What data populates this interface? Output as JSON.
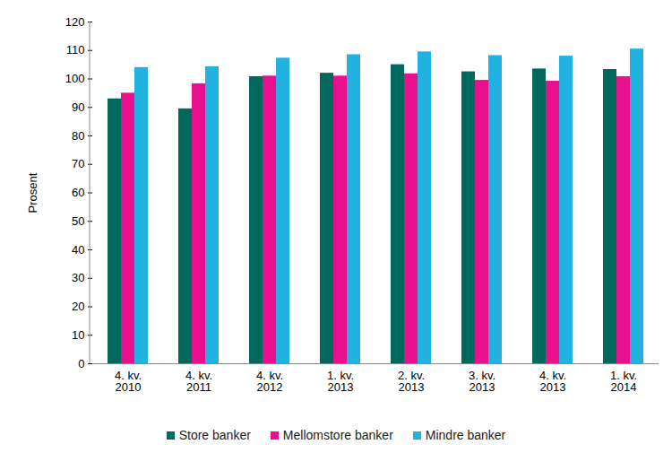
{
  "chart_data": {
    "type": "bar",
    "categories": [
      "4. kv.\n2010",
      "4. kv.\n2011",
      "4. kv.\n2012",
      "1. kv.\n2013",
      "2. kv.\n2013",
      "3. kv.\n2013",
      "4. kv.\n2013",
      "1. kv.\n2014"
    ],
    "series": [
      {
        "name": "Store banker",
        "color": "#00685c",
        "values": [
          93,
          89.5,
          100.8,
          102,
          105,
          102.5,
          103.5,
          103.3
        ]
      },
      {
        "name": "Mellomstore banker",
        "color": "#e8108f",
        "values": [
          95,
          98.3,
          101,
          101,
          101.8,
          99.5,
          99.2,
          100.8
        ]
      },
      {
        "name": "Mindre banker",
        "color": "#22b2e2",
        "values": [
          104,
          104.3,
          107.3,
          108.5,
          109.5,
          108.2,
          108,
          110.5
        ]
      }
    ],
    "y_label": "Prosent",
    "ylim": [
      0,
      120
    ],
    "yticks": [
      0,
      10,
      20,
      30,
      40,
      50,
      60,
      70,
      80,
      90,
      100,
      110,
      120
    ],
    "grid": false,
    "legend": "bottom"
  }
}
